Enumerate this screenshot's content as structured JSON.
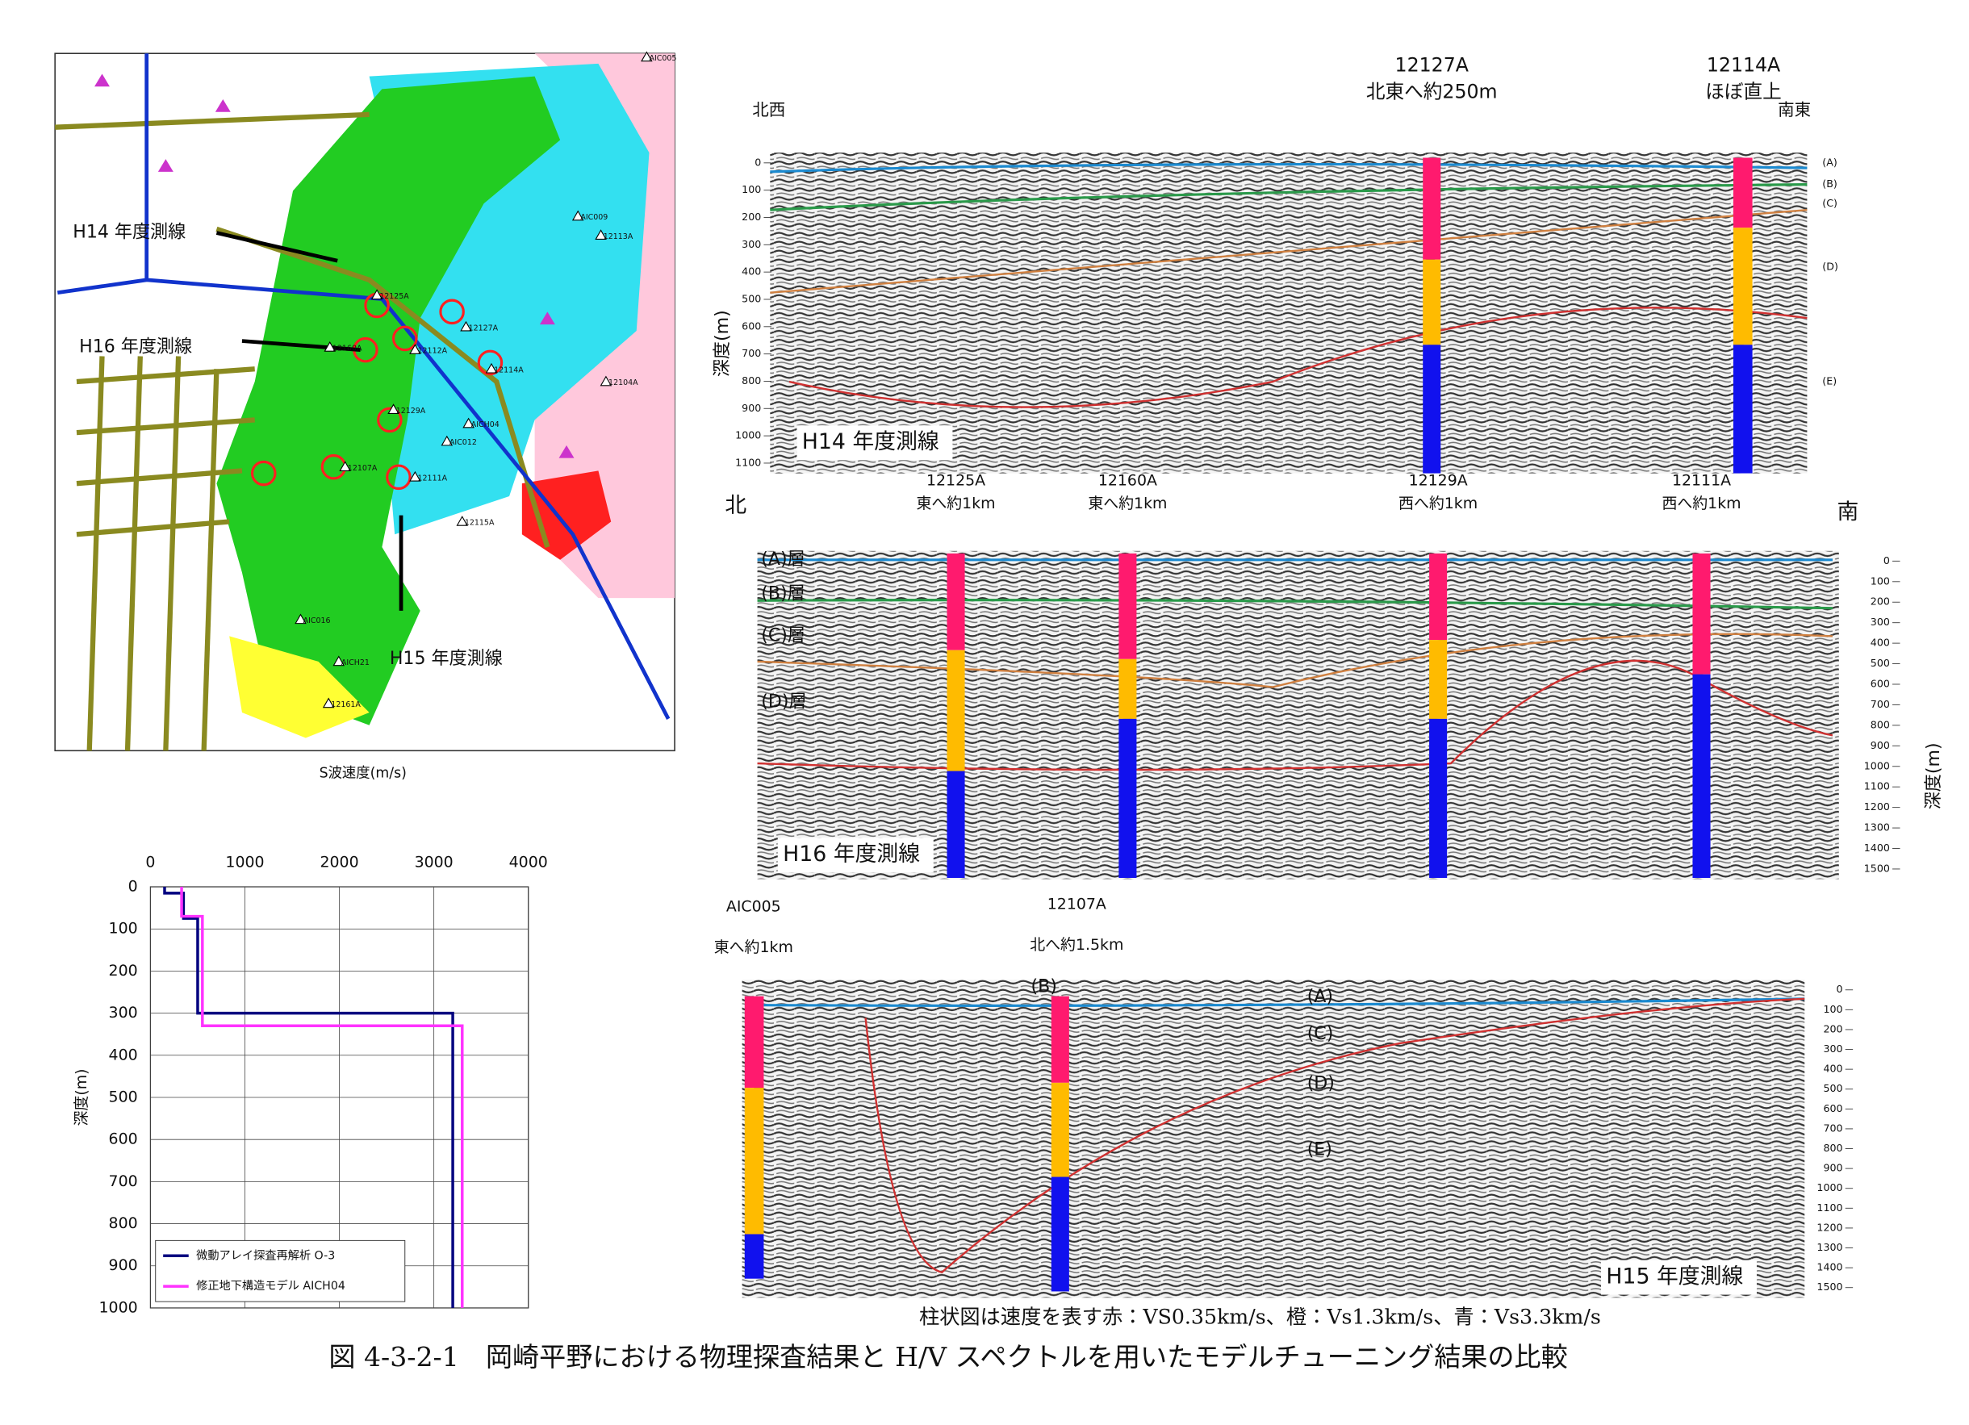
{
  "figure": {
    "caption": "図 4-3-2-1　岡崎平野における物理探査結果と H/V スペクトルを用いたモデルチューニング結果の比較",
    "note": "柱状図は速度を表す赤：VS0.35km/s、橙：Vs1.3km/s、青：Vs3.3km/s"
  },
  "map": {
    "survey_labels": [
      "H14 年度測線",
      "H16 年度測線",
      "H15 年度測線"
    ],
    "stations": [
      "AIC005",
      "12127A",
      "12114A",
      "12125A",
      "12160A",
      "12112A",
      "12129A",
      "AICH04",
      "12111A",
      "12107A",
      "AIC012",
      "12104A",
      "12115A",
      "AIC016",
      "AICH21",
      "12161A",
      "AIC009",
      "12113A"
    ],
    "legend_label": "S波速度(m/s)"
  },
  "sections": [
    {
      "title": "H14 年度測線",
      "left": "北西",
      "right": "南東",
      "wells": [
        {
          "name": "12127A",
          "offset": "北東へ約250m"
        },
        {
          "name": "12114A",
          "offset": "ほぼ直上"
        }
      ],
      "layers": [
        "(A)",
        "(B)",
        "(C)",
        "(D)",
        "(E)"
      ],
      "depth_ticks": [
        0,
        100,
        200,
        300,
        400,
        500,
        600,
        700,
        800,
        900,
        1000,
        1100
      ],
      "depth_label": "深度(m)"
    },
    {
      "title": "H16 年度測線",
      "left": "北",
      "right": "南",
      "wells": [
        {
          "name": "12125A",
          "offset": "東へ約1km"
        },
        {
          "name": "12160A",
          "offset": "東へ約1km"
        },
        {
          "name": "12129A",
          "offset": "西へ約1km"
        },
        {
          "name": "12111A",
          "offset": "西へ約1km"
        }
      ],
      "layers": [
        "(A)層",
        "(B)層",
        "(C)層",
        "(D)層"
      ],
      "depth_ticks": [
        0,
        100,
        200,
        300,
        400,
        500,
        600,
        700,
        800,
        900,
        1000,
        1100,
        1200,
        1300,
        1400,
        1500
      ],
      "depth_label": "深度(m)"
    },
    {
      "title": "H15 年度測線",
      "left": "",
      "right": "",
      "wells": [
        {
          "name": "AIC005",
          "offset": "東へ約1km"
        },
        {
          "name": "12107A",
          "offset": "北へ約1.5km"
        }
      ],
      "layers": [
        "(B)",
        "(A)",
        "(C)",
        "(D)",
        "(E)"
      ],
      "depth_ticks": [
        0,
        100,
        200,
        300,
        400,
        500,
        600,
        700,
        800,
        900,
        1000,
        1100,
        1200,
        1300,
        1400,
        1500
      ],
      "depth_label": ""
    }
  ],
  "chart_data": {
    "type": "line",
    "y_label": "深度(m)",
    "xlim": [
      0,
      4000
    ],
    "xticks": [
      0,
      1000,
      2000,
      3000,
      4000
    ],
    "ylim": [
      0,
      1000
    ],
    "yticks": [
      0,
      100,
      200,
      300,
      400,
      500,
      600,
      700,
      800,
      900,
      1000
    ],
    "y_inverted": true,
    "x_axis_top": true,
    "grid": true,
    "legend": "lower left",
    "series": [
      {
        "name": "微動アレイ探査再解析  O-3",
        "color": "#00007f",
        "x": [
          150,
          150,
          350,
          350,
          500,
          500,
          3200,
          3200
        ],
        "values": [
          0,
          15,
          15,
          75,
          75,
          300,
          300,
          1000
        ]
      },
      {
        "name": "修正地下構造モデル  AICH04",
        "color": "#ff33ff",
        "x": [
          330,
          330,
          550,
          550,
          3300,
          3300
        ],
        "values": [
          0,
          70,
          70,
          330,
          330,
          1000
        ]
      }
    ]
  }
}
